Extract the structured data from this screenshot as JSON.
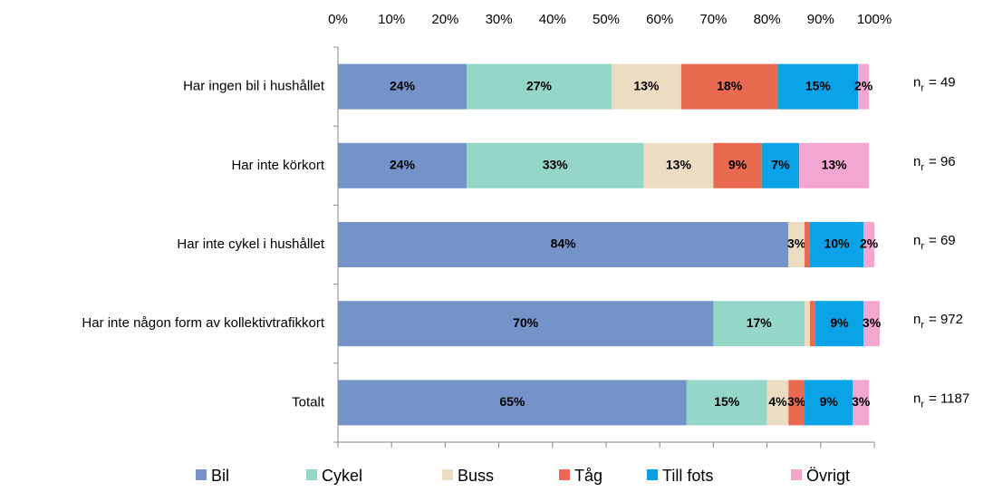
{
  "chart_data": {
    "type": "stacked_barh",
    "categories": [
      "Har ingen bil i hushållet",
      "Har inte körkort",
      "Har inte cykel i hushållet",
      "Har inte någon form av kollektivtrafikkort",
      "Totalt"
    ],
    "series": [
      {
        "name": "Bil",
        "color": "#7393c9",
        "values": [
          24,
          24,
          84,
          70,
          65
        ],
        "value_labels": [
          "24%",
          "24%",
          "84%",
          "70%",
          "65%"
        ]
      },
      {
        "name": "Cykel",
        "color": "#94d7c9",
        "values": [
          27,
          33,
          0,
          17,
          15
        ],
        "value_labels": [
          "27%",
          "33%",
          null,
          "17%",
          "15%"
        ]
      },
      {
        "name": "Buss",
        "color": "#ecdcc1",
        "values": [
          13,
          13,
          3,
          1,
          4
        ],
        "value_labels": [
          "13%",
          "13%",
          "3%",
          null,
          "4%"
        ]
      },
      {
        "name": "Tåg",
        "color": "#e96a51",
        "values": [
          18,
          9,
          1,
          1,
          3
        ],
        "value_labels": [
          "18%",
          "9%",
          null,
          null,
          "3%"
        ]
      },
      {
        "name": "Till fots",
        "color": "#0ba3e8",
        "values": [
          15,
          7,
          10,
          9,
          9
        ],
        "value_labels": [
          "15%",
          "7%",
          "10%",
          "9%",
          "9%"
        ]
      },
      {
        "name": "Övrigt",
        "color": "#f3a6cf",
        "values": [
          2,
          13,
          2,
          3,
          3
        ],
        "value_labels": [
          "2%",
          "13%",
          "2%",
          "3%",
          "3%"
        ]
      }
    ],
    "xlim": [
      0,
      100
    ],
    "xticks": [
      {
        "value": 0,
        "label": "0%"
      },
      {
        "value": 10,
        "label": "10%"
      },
      {
        "value": 20,
        "label": "20%"
      },
      {
        "value": 30,
        "label": "30%"
      },
      {
        "value": 40,
        "label": "40%"
      },
      {
        "value": 50,
        "label": "50%"
      },
      {
        "value": 60,
        "label": "60%"
      },
      {
        "value": 70,
        "label": "70%"
      },
      {
        "value": 80,
        "label": "80%"
      },
      {
        "value": 90,
        "label": "90%"
      },
      {
        "value": 100,
        "label": "100%"
      }
    ],
    "n_symbol": "n",
    "n_subscript": "r",
    "n_labels": [
      "= 49",
      "= 96",
      "= 69",
      "= 972",
      "= 1187"
    ],
    "legend": "bottom"
  }
}
